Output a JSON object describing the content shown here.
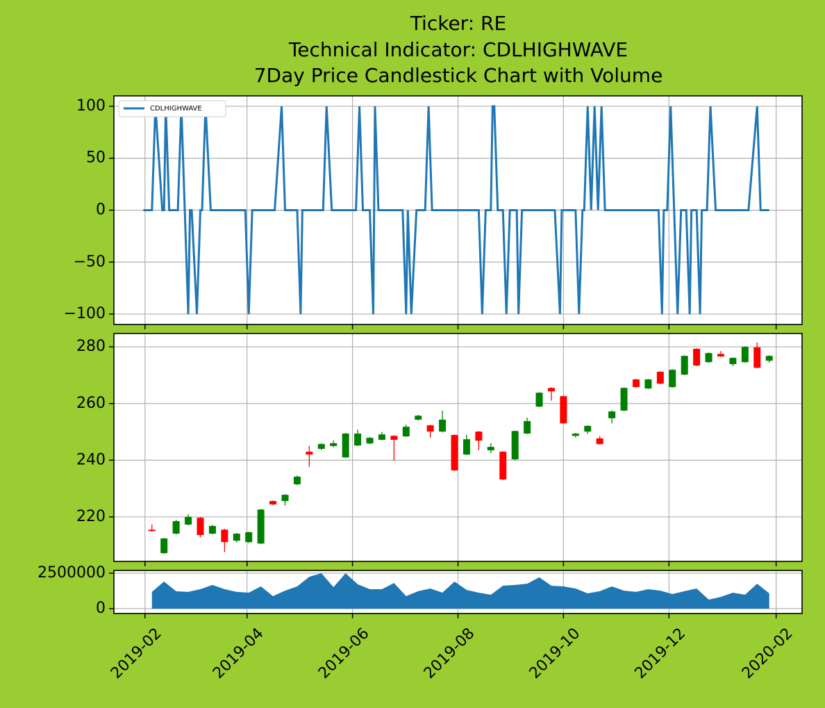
{
  "chart_data": [
    {
      "type": "line",
      "title": "Ticker: RE",
      "subtitle": "Technical Indicator: CDLHIGHWAVE",
      "x": [
        "2019-01-31",
        "2019-02-05",
        "2019-02-07",
        "2019-02-11",
        "2019-02-12",
        "2019-02-13",
        "2019-02-15",
        "2019-02-20",
        "2019-02-22",
        "2019-02-24",
        "2019-02-26",
        "2019-02-27",
        "2019-02-28",
        "2019-03-03",
        "2019-03-05",
        "2019-03-06",
        "2019-03-08",
        "2019-03-11",
        "2019-03-31",
        "2019-04-02",
        "2019-04-04",
        "2019-04-17",
        "2019-04-21",
        "2019-04-23",
        "2019-04-30",
        "2019-05-02",
        "2019-05-03",
        "2019-05-15",
        "2019-05-17",
        "2019-05-20",
        "2019-06-03",
        "2019-06-05",
        "2019-06-07",
        "2019-06-11",
        "2019-06-13",
        "2019-06-14",
        "2019-06-16",
        "2019-06-30",
        "2019-07-02",
        "2019-07-03",
        "2019-07-05",
        "2019-07-08",
        "2019-07-13",
        "2019-07-15",
        "2019-07-17",
        "2019-08-13",
        "2019-08-15",
        "2019-08-17",
        "2019-08-20",
        "2019-08-21",
        "2019-08-22",
        "2019-08-24",
        "2019-08-27",
        "2019-08-29",
        "2019-08-31",
        "2019-09-04",
        "2019-09-05",
        "2019-09-07",
        "2019-09-26",
        "2019-09-29",
        "2019-09-30",
        "2019-10-08",
        "2019-10-10",
        "2019-10-12",
        "2019-10-13",
        "2019-10-15",
        "2019-10-17",
        "2019-10-19",
        "2019-10-21",
        "2019-10-23",
        "2019-10-25",
        "2019-11-25",
        "2019-11-27",
        "2019-11-28",
        "2019-11-30",
        "2019-12-02",
        "2019-12-04",
        "2019-12-06",
        "2019-12-08",
        "2019-12-11",
        "2019-12-13",
        "2019-12-14",
        "2019-12-17",
        "2019-12-19",
        "2019-12-20",
        "2019-12-23",
        "2019-12-25",
        "2019-12-28",
        "2020-01-16",
        "2020-01-21",
        "2020-01-23",
        "2020-01-28"
      ],
      "series": [
        {
          "name": "CDLHIGHWAVE",
          "color": "#1f77b4",
          "values": [
            0,
            0,
            100,
            0,
            0,
            100,
            0,
            0,
            100,
            0,
            -100,
            0,
            0,
            -100,
            0,
            0,
            100,
            0,
            0,
            -100,
            0,
            0,
            100,
            0,
            0,
            -100,
            0,
            0,
            100,
            0,
            0,
            100,
            0,
            0,
            -100,
            100,
            0,
            0,
            -100,
            0,
            -100,
            0,
            0,
            100,
            0,
            0,
            -100,
            0,
            0,
            100,
            100,
            0,
            0,
            -100,
            0,
            0,
            -100,
            0,
            0,
            -100,
            0,
            0,
            -100,
            0,
            0,
            100,
            0,
            100,
            0,
            100,
            0,
            0,
            -100,
            0,
            0,
            100,
            0,
            -100,
            0,
            0,
            -100,
            0,
            0,
            -100,
            0,
            0,
            100,
            0,
            0,
            100,
            0,
            0
          ]
        }
      ],
      "legend": "upper left",
      "ylim": [
        -110,
        110
      ],
      "yticks": [
        {
          "value": -100,
          "label": "−100"
        },
        {
          "value": -50,
          "label": "−50"
        },
        0,
        50,
        100
      ],
      "grid": true
    },
    {
      "type": "candlestick",
      "title": "7Day Price Candlestick Chart with Volume",
      "x": [
        "2019-02-05",
        "2019-02-12",
        "2019-02-19",
        "2019-02-26",
        "2019-03-05",
        "2019-03-12",
        "2019-03-19",
        "2019-03-26",
        "2019-04-02",
        "2019-04-09",
        "2019-04-16",
        "2019-04-23",
        "2019-04-30",
        "2019-05-07",
        "2019-05-14",
        "2019-05-21",
        "2019-05-28",
        "2019-06-04",
        "2019-06-11",
        "2019-06-18",
        "2019-06-25",
        "2019-07-02",
        "2019-07-09",
        "2019-07-16",
        "2019-07-23",
        "2019-07-30",
        "2019-08-06",
        "2019-08-13",
        "2019-08-20",
        "2019-08-27",
        "2019-09-03",
        "2019-09-10",
        "2019-09-17",
        "2019-09-24",
        "2019-10-01",
        "2019-10-08",
        "2019-10-15",
        "2019-10-22",
        "2019-10-29",
        "2019-11-05",
        "2019-11-12",
        "2019-11-19",
        "2019-11-26",
        "2019-12-03",
        "2019-12-10",
        "2019-12-17",
        "2019-12-24",
        "2019-12-31",
        "2020-01-07",
        "2020-01-14",
        "2020-01-21",
        "2020-01-28"
      ],
      "open": [
        215.5,
        207.2,
        214.1,
        217.3,
        219.7,
        214.1,
        215.5,
        211.6,
        211.1,
        210.6,
        225.6,
        225.6,
        231.5,
        243,
        244,
        245,
        241,
        245.2,
        245.9,
        247.2,
        248.6,
        248.4,
        254.3,
        252.3,
        250.1,
        248.9,
        242,
        250.1,
        243.5,
        243,
        240.3,
        249.4,
        258.9,
        265.5,
        262.6,
        248.6,
        250.1,
        247.7,
        254.8,
        257.5,
        268.5,
        265.3,
        271.2,
        265.8,
        270.2,
        279.3,
        274.6,
        277.5,
        273.9,
        274.6,
        279.8,
        275.1
      ],
      "high": [
        217.3,
        212.6,
        219,
        221,
        220,
        217.2,
        215.8,
        214.3,
        214.8,
        222.8,
        225.8,
        228,
        234.6,
        245,
        246,
        247,
        249.6,
        250.8,
        248.2,
        250,
        248.8,
        252.5,
        256,
        252.5,
        257.5,
        249.1,
        249,
        250.3,
        246,
        243.2,
        250.5,
        255,
        264,
        265.7,
        262.8,
        249.6,
        252.3,
        248.5,
        257.6,
        265.7,
        268.7,
        268.7,
        271.4,
        272.1,
        277,
        279.5,
        278,
        278.5,
        276.3,
        280.2,
        281.5,
        277
      ],
      "low": [
        214.8,
        207,
        213.8,
        217,
        212.8,
        213.8,
        207.6,
        211,
        210.8,
        210.4,
        224.2,
        224,
        231.2,
        237.6,
        243.6,
        244.6,
        240.8,
        245,
        245.6,
        247,
        239.8,
        248.2,
        254,
        248,
        249.8,
        236.2,
        241.8,
        243.5,
        242.5,
        233,
        240.1,
        249.2,
        258.7,
        261,
        252.8,
        248,
        249.3,
        245.5,
        253,
        257.3,
        265.6,
        265.1,
        266.8,
        265.6,
        270,
        273.2,
        274.4,
        276.4,
        273.2,
        274.4,
        272.4,
        274.4
      ],
      "close": [
        215,
        212.4,
        218.5,
        220,
        213.6,
        216.8,
        211.1,
        214.1,
        214.6,
        222.6,
        224.4,
        227.8,
        234.2,
        242,
        245.7,
        246,
        249.4,
        249.4,
        247.9,
        249.1,
        247.2,
        251.8,
        255.7,
        250.1,
        254.3,
        236.4,
        247.4,
        246.9,
        244.7,
        233.2,
        250.3,
        253.8,
        263.8,
        264.3,
        253,
        249.4,
        252.1,
        245.7,
        257.2,
        265.5,
        265.8,
        268.5,
        267,
        271.9,
        276.8,
        273.4,
        277.8,
        276.6,
        276.1,
        280,
        272.6,
        276.8
      ],
      "up_color": "#008000",
      "down_color": "#ff0000",
      "ylim": [
        204.3,
        284.7
      ],
      "yticks": [
        220,
        240,
        260,
        280
      ],
      "grid": true
    },
    {
      "type": "area",
      "x": [
        "2019-02-05",
        "2019-02-12",
        "2019-02-19",
        "2019-02-26",
        "2019-03-05",
        "2019-03-12",
        "2019-03-19",
        "2019-03-26",
        "2019-04-02",
        "2019-04-09",
        "2019-04-16",
        "2019-04-23",
        "2019-04-30",
        "2019-05-07",
        "2019-05-14",
        "2019-05-21",
        "2019-05-28",
        "2019-06-04",
        "2019-06-11",
        "2019-06-18",
        "2019-06-25",
        "2019-07-02",
        "2019-07-09",
        "2019-07-16",
        "2019-07-23",
        "2019-07-30",
        "2019-08-06",
        "2019-08-13",
        "2019-08-20",
        "2019-08-27",
        "2019-09-03",
        "2019-09-10",
        "2019-09-17",
        "2019-09-24",
        "2019-10-01",
        "2019-10-08",
        "2019-10-15",
        "2019-10-22",
        "2019-10-29",
        "2019-11-05",
        "2019-11-12",
        "2019-11-19",
        "2019-11-26",
        "2019-12-03",
        "2019-12-10",
        "2019-12-17",
        "2019-12-24",
        "2019-12-31",
        "2020-01-07",
        "2020-01-14",
        "2020-01-21",
        "2020-01-28"
      ],
      "values": [
        1180000,
        1910000,
        1225000,
        1180000,
        1370000,
        1670000,
        1370000,
        1180000,
        1130000,
        1570000,
        880000,
        1270000,
        1570000,
        2250000,
        2500000,
        1520000,
        2500000,
        1720000,
        1370000,
        1370000,
        1810000,
        880000,
        1230000,
        1420000,
        1130000,
        1910000,
        1320000,
        1130000,
        980000,
        1620000,
        1670000,
        1760000,
        2210000,
        1620000,
        1570000,
        1420000,
        1080000,
        1230000,
        1570000,
        1270000,
        1180000,
        1370000,
        1270000,
        1030000,
        1230000,
        1420000,
        640000,
        830000,
        1130000,
        980000,
        1760000,
        1080000
      ],
      "color": "#1f77b4",
      "ylim": [
        -343000,
        2696000
      ],
      "yticks": [
        0,
        2500000
      ],
      "xlim": [
        "2019-01-14",
        "2020-02-16"
      ],
      "xticks": [
        "2019-02",
        "2019-04",
        "2019-06",
        "2019-08",
        "2019-10",
        "2019-12",
        "2020-02"
      ],
      "grid": true
    }
  ]
}
